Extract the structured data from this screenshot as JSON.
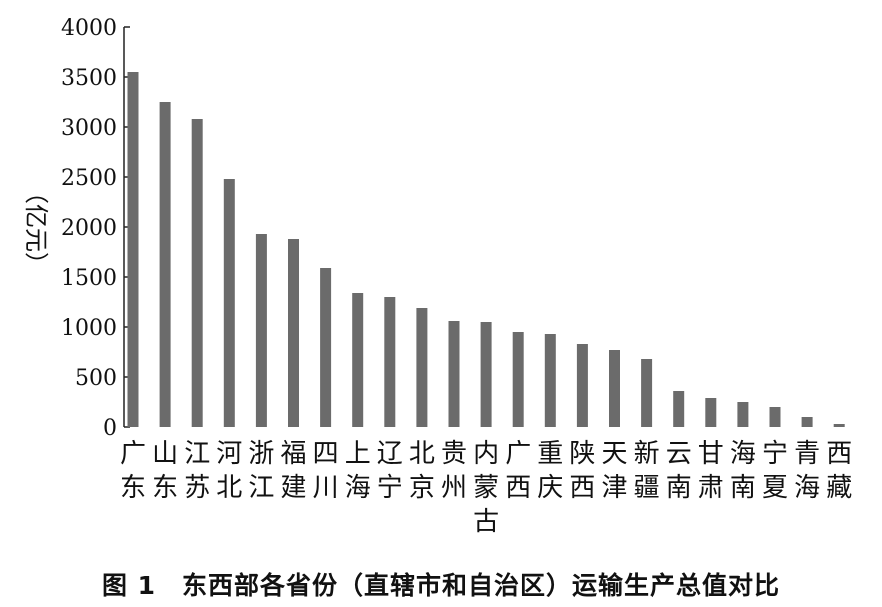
{
  "caption": "图 1　东西部各省份（直辖市和自治区）运输生产总值对比",
  "chart_data": {
    "type": "bar",
    "title": "",
    "xlabel": "",
    "ylabel": "（亿元）",
    "ylim": [
      0,
      4000
    ],
    "yticks": [
      0,
      500,
      1000,
      1500,
      2000,
      2500,
      3000,
      3500,
      4000
    ],
    "grid": false,
    "bar_color": "#6b6b6b",
    "categories": [
      "广东",
      "山东",
      "江苏",
      "河北",
      "浙江",
      "福建",
      "四川",
      "上海",
      "辽宁",
      "北京",
      "贵州",
      "内蒙古",
      "广西",
      "重庆",
      "陕西",
      "天津",
      "新疆",
      "云南",
      "甘肃",
      "海南",
      "宁夏",
      "青海",
      "西藏"
    ],
    "values": [
      3550,
      3250,
      3080,
      2480,
      1930,
      1880,
      1590,
      1340,
      1300,
      1190,
      1060,
      1050,
      950,
      930,
      830,
      770,
      680,
      360,
      290,
      250,
      200,
      100,
      30
    ]
  }
}
